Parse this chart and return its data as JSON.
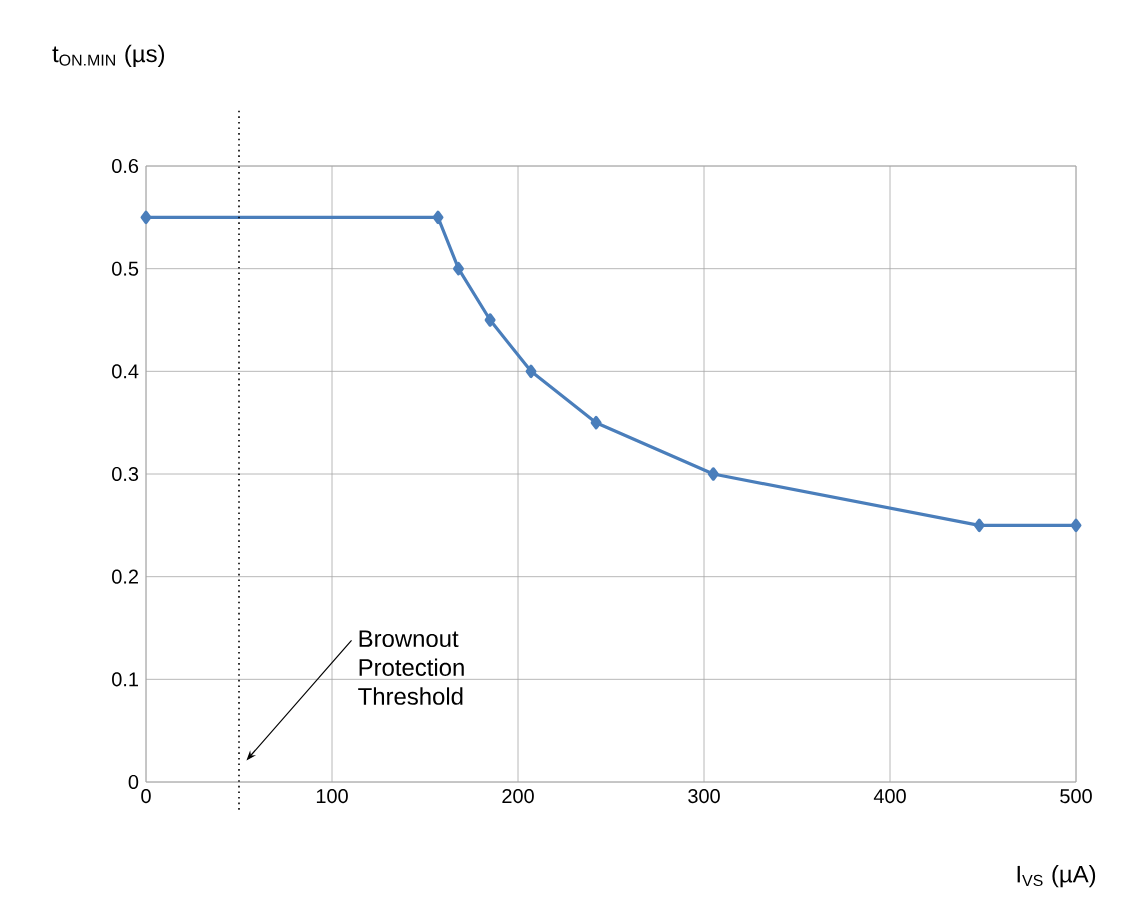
{
  "chart_data": {
    "type": "line",
    "xlabel": "I$_{VS}$ (µA)",
    "ylabel": "t$_{ON.MIN}$ (µs)",
    "x": [
      0,
      157,
      168,
      185,
      207,
      242,
      305,
      448,
      500
    ],
    "series": [
      {
        "color": "#4a7ebb",
        "values": [
          0.55,
          0.55,
          0.5,
          0.45,
          0.4,
          0.35,
          0.3,
          0.25,
          0.25
        ]
      }
    ],
    "xlim": [
      0,
      500
    ],
    "ylim": [
      0,
      0.6
    ],
    "xticks": [
      0,
      100,
      200,
      300,
      400,
      500
    ],
    "yticks": [
      0,
      0.1,
      0.2,
      0.3,
      0.4,
      0.5,
      0.6
    ],
    "grid": true,
    "marker": "diamond",
    "line_style": "solid",
    "ref_lines": [
      {
        "axis": "x",
        "value": 50,
        "label": "Brownout Protection Threshold",
        "color": "#000000",
        "line_style": "dotted"
      }
    ]
  }
}
